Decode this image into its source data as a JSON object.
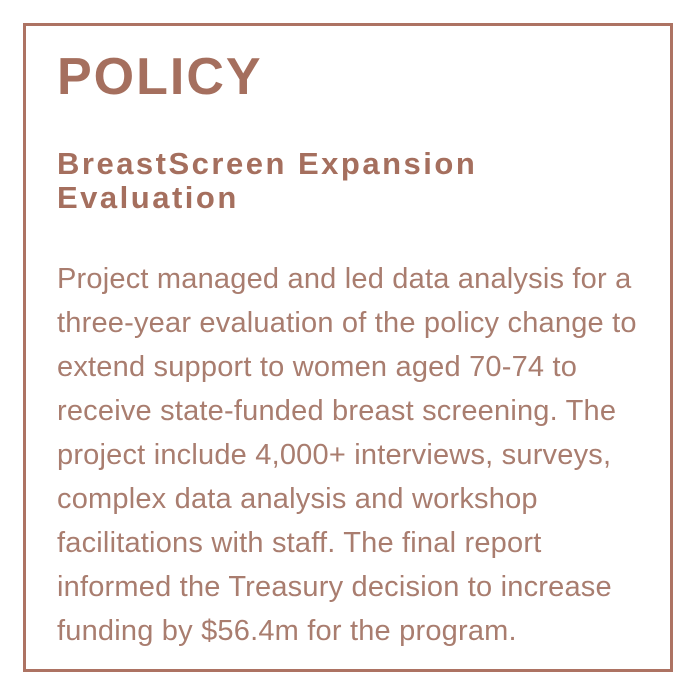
{
  "card": {
    "category": "POLICY",
    "title": "BreastScreen Expansion\nEvaluation",
    "description": "Project managed and led data analysis for a\nthree-year evaluation of the policy change to\nextend support to women aged 70-74 to\nreceive state-funded breast screening. The\nproject include 4,000+ interviews, surveys,\ncomplex data analysis and workshop\nfacilitations with staff. The final report\ninformed the Treasury decision to increase\nfunding by $56.4m for the program.",
    "colors": {
      "border": "#ad7363",
      "heading": "#a56f5e",
      "body_text": "#a97d6f",
      "background": "#ffffff"
    }
  }
}
